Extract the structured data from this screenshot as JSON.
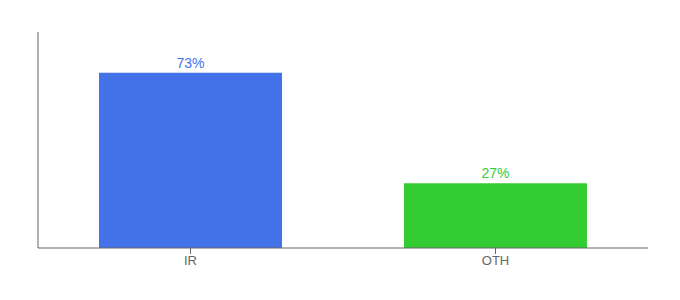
{
  "chart_data": {
    "type": "bar",
    "categories": [
      "IR",
      "OTH"
    ],
    "values": [
      73,
      27
    ],
    "value_labels": [
      "73%",
      "27%"
    ],
    "colors": [
      "#4472e8",
      "#33cc33"
    ],
    "ylim": [
      0,
      90
    ],
    "data_labels": true,
    "tick_labels": "x"
  }
}
